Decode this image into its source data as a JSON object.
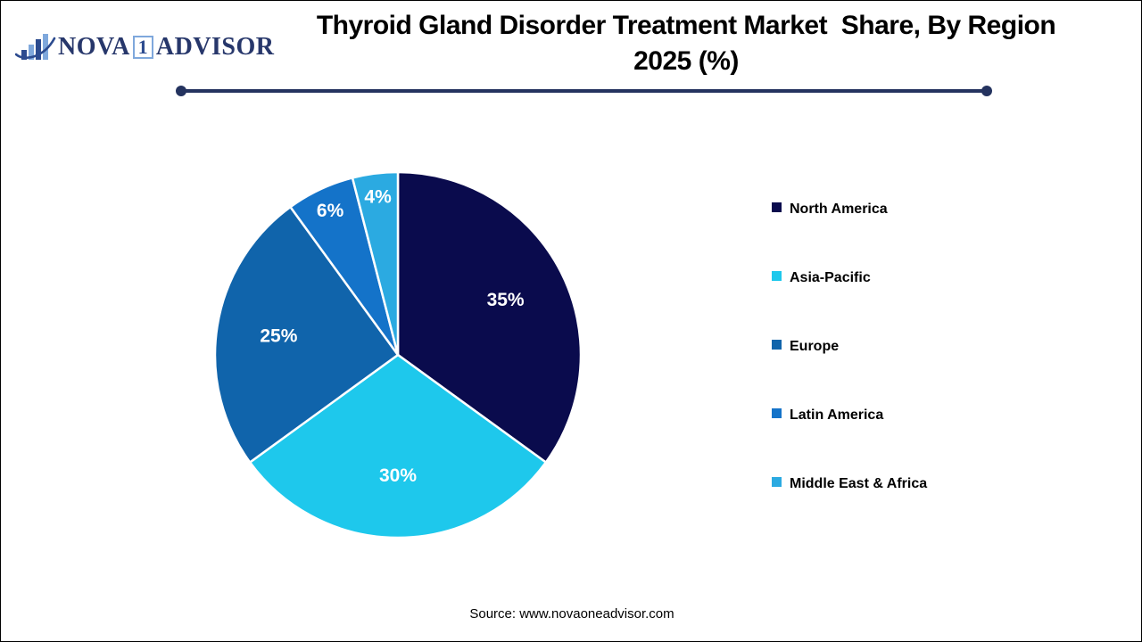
{
  "logo": {
    "nova": "NOVA",
    "one": "1",
    "advisor": "ADVISOR",
    "icon": "bar-chart-swoosh-icon",
    "navy": "#27376B",
    "light_blue": "#7FA8DC"
  },
  "title": {
    "line1": "Thyroid Gland Disorder Treatment Market  Share, By Region",
    "line2": "2025 (%)"
  },
  "source": "Source: www.novaoneadvisor.com",
  "chart_data": {
    "type": "pie",
    "title": "Thyroid Gland Disorder Treatment Market Share, By Region 2025 (%)",
    "categories": [
      "North America",
      "Asia-Pacific",
      "Europe",
      "Latin America",
      "Middle East & Africa"
    ],
    "values": [
      35,
      30,
      25,
      6,
      4
    ],
    "slice_labels": [
      "35%",
      "30%",
      "25%",
      "6%",
      "4%"
    ],
    "colors": [
      "#0A0B4D",
      "#1EC8EC",
      "#1064AB",
      "#1473C9",
      "#2BAAE1"
    ],
    "start_angle_deg": 0,
    "direction": "clockwise",
    "legend_position": "right",
    "slice_label_color": "#FFFFFF",
    "slice_border_color": "#FFFFFF"
  },
  "decor": {
    "separator_color": "#24335F"
  }
}
